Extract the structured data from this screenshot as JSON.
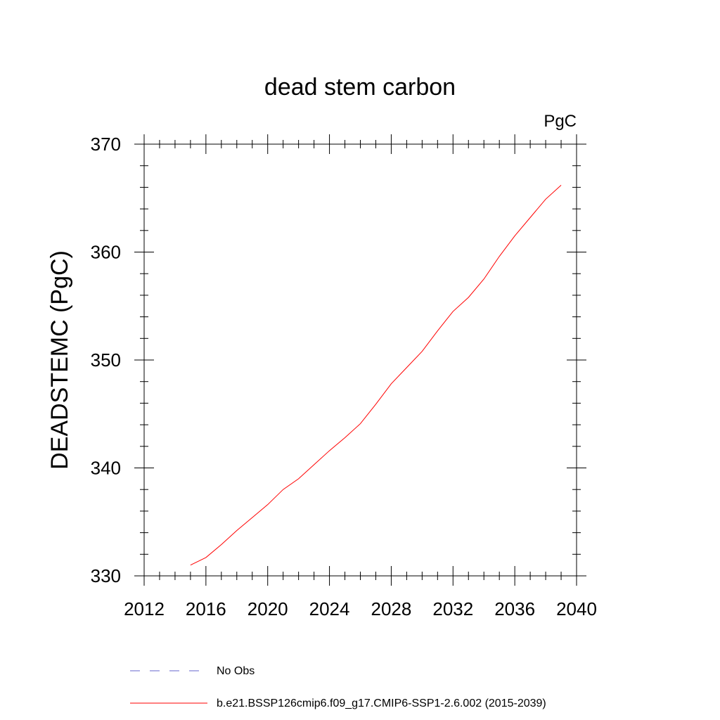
{
  "chart_data": {
    "type": "line",
    "title": "dead stem carbon",
    "units_label": "PgC",
    "ylabel": "DEADSTEMC  (PgC)",
    "xlabel": "",
    "xlim": [
      2012,
      2040
    ],
    "ylim": [
      330,
      370
    ],
    "x_ticks": [
      2012,
      2016,
      2020,
      2024,
      2028,
      2032,
      2036,
      2040
    ],
    "y_ticks": [
      330,
      340,
      350,
      360,
      370
    ],
    "x_tick_labels": [
      "2012",
      "2016",
      "2020",
      "2024",
      "2028",
      "2032",
      "2036",
      "2040"
    ],
    "y_tick_labels": [
      "330",
      "340",
      "350",
      "360",
      "370"
    ],
    "grid": false,
    "legend_position": "bottom",
    "series": [
      {
        "name": "b.e21.BSSP126cmip6.f09_g17.CMIP6-SSP1-2.6.002 (2015-2039)",
        "color": "#ff0000",
        "style": "solid",
        "x": [
          2015,
          2016,
          2017,
          2018,
          2019,
          2020,
          2021,
          2022,
          2023,
          2024,
          2025,
          2026,
          2027,
          2028,
          2029,
          2030,
          2031,
          2032,
          2033,
          2034,
          2035,
          2036,
          2037,
          2038,
          2039
        ],
        "values": [
          331.0,
          331.7,
          332.9,
          334.2,
          335.4,
          336.6,
          338.0,
          339.0,
          340.3,
          341.6,
          342.8,
          344.1,
          345.9,
          347.8,
          349.3,
          350.8,
          352.7,
          354.5,
          355.8,
          357.5,
          359.6,
          361.5,
          363.2,
          364.9,
          366.2
        ]
      },
      {
        "name": "No Obs",
        "color": "#6666cc",
        "style": "dashed",
        "x": [],
        "values": []
      }
    ]
  }
}
